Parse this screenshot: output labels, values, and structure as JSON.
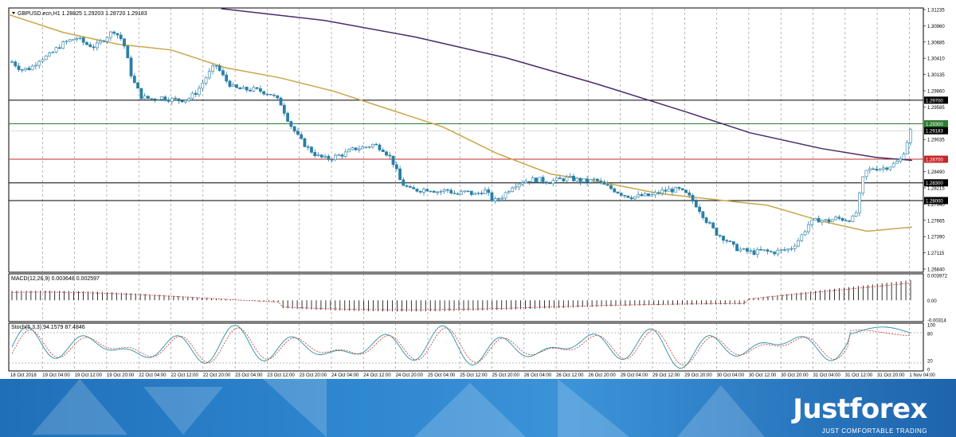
{
  "symbol_header": "GBPUSD.ecn,H1  1.28825 1.29203 1.28720 1.29183",
  "brand": {
    "name": "Justforex",
    "tagline": "JUST COMFORTABLE TRADING"
  },
  "colors": {
    "bull": "#2a7fa6",
    "ma_fast": "#c9a54a",
    "ma_slow": "#4b2a6b",
    "hline_black": "#000000",
    "hline_green": "#2e7d32",
    "hline_red": "#c62828",
    "macd_signal": "#c0392b",
    "stoch_main": "#2a8fa0",
    "stoch_signal": "#c0392b"
  },
  "chart_data": {
    "type": "candlestick",
    "price_axis": {
      "ylim": [
        1.2684,
        1.31235
      ],
      "ticks": [
        "1.31235",
        "1.30960",
        "1.30685",
        "1.30410",
        "1.30135",
        "1.29860",
        "1.29585",
        "1.29035",
        "1.28490",
        "1.28215",
        "1.27940",
        "1.27665",
        "1.27390",
        "1.27115",
        "1.26840"
      ]
    },
    "horizontal_levels": [
      {
        "value": 1.297,
        "label": "1.29700",
        "color": "black"
      },
      {
        "value": 1.293,
        "label": "1.29300",
        "color": "green"
      },
      {
        "value": 1.287,
        "label": "1.28700",
        "color": "red"
      },
      {
        "value": 1.283,
        "label": "1.28300",
        "color": "black"
      },
      {
        "value": 1.28,
        "label": "1.28000",
        "color": "black"
      }
    ],
    "current_price": {
      "value": 1.29183,
      "label": "1.29183"
    },
    "time_labels": [
      "18 Oct 2018",
      "19 Oct 04:00",
      "19 Oct 12:00",
      "19 Oct 20:00",
      "22 Oct 04:00",
      "22 Oct 12:00",
      "22 Oct 20:00",
      "23 Oct 04:00",
      "23 Oct 12:00",
      "23 Oct 20:00",
      "24 Oct 04:00",
      "24 Oct 12:00",
      "24 Oct 20:00",
      "25 Oct 04:00",
      "25 Oct 12:00",
      "25 Oct 20:00",
      "26 Oct 04:00",
      "26 Oct 12:00",
      "26 Oct 20:00",
      "29 Oct 04:00",
      "29 Oct 12:00",
      "29 Oct 20:00",
      "30 Oct 04:00",
      "30 Oct 12:00",
      "30 Oct 20:00",
      "31 Oct 04:00",
      "31 Oct 12:00",
      "31 Oct 20:00",
      "1 Nov 04:00"
    ],
    "close_path": [
      1.3035,
      1.3022,
      1.3024,
      1.304,
      1.3045,
      1.306,
      1.307,
      1.3075,
      1.3065,
      1.306,
      1.3075,
      1.3088,
      1.307,
      1.3005,
      1.2975,
      1.2972,
      1.2975,
      1.2972,
      1.297,
      1.2972,
      1.2985,
      1.301,
      1.303,
      1.3005,
      1.299,
      1.2988,
      1.2988,
      1.2985,
      1.298,
      1.2965,
      1.293,
      1.2905,
      1.2888,
      1.2875,
      1.287,
      1.2875,
      1.288,
      1.2888,
      1.289,
      1.2895,
      1.2888,
      1.287,
      1.283,
      1.2818,
      1.2818,
      1.282,
      1.2815,
      1.2818,
      1.281,
      1.2815,
      1.281,
      1.2818,
      1.2798,
      1.2808,
      1.2825,
      1.2832,
      1.2835,
      1.2835,
      1.2832,
      1.2835,
      1.2838,
      1.2835,
      1.2832,
      1.2835,
      1.2825,
      1.2818,
      1.281,
      1.2806,
      1.2808,
      1.2808,
      1.2815,
      1.2818,
      1.2818,
      1.2808,
      1.279,
      1.2765,
      1.2745,
      1.2735,
      1.272,
      1.2715,
      1.2712,
      1.2715,
      1.2712,
      1.2715,
      1.2718,
      1.2735,
      1.276,
      1.2768,
      1.2765,
      1.277,
      1.2768,
      1.277,
      1.2848,
      1.2855,
      1.2855,
      1.286,
      1.287,
      1.2918
    ],
    "ma_fast_label": "MA (yellow)",
    "ma_fast": [
      {
        "t": 0.0,
        "v": 1.3115
      },
      {
        "t": 0.06,
        "v": 1.3085
      },
      {
        "t": 0.12,
        "v": 1.3065
      },
      {
        "t": 0.18,
        "v": 1.3055
      },
      {
        "t": 0.24,
        "v": 1.3025
      },
      {
        "t": 0.3,
        "v": 1.3008
      },
      {
        "t": 0.36,
        "v": 1.2985
      },
      {
        "t": 0.42,
        "v": 1.2955
      },
      {
        "t": 0.48,
        "v": 1.2925
      },
      {
        "t": 0.54,
        "v": 1.288
      },
      {
        "t": 0.6,
        "v": 1.2845
      },
      {
        "t": 0.66,
        "v": 1.283
      },
      {
        "t": 0.72,
        "v": 1.2812
      },
      {
        "t": 0.78,
        "v": 1.2802
      },
      {
        "t": 0.84,
        "v": 1.2792
      },
      {
        "t": 0.9,
        "v": 1.2765
      },
      {
        "t": 0.95,
        "v": 1.2748
      },
      {
        "t": 1.0,
        "v": 1.2755
      }
    ],
    "ma_slow": [
      {
        "t": 0.235,
        "v": 1.3125
      },
      {
        "t": 0.35,
        "v": 1.3105
      },
      {
        "t": 0.45,
        "v": 1.3077
      },
      {
        "t": 0.55,
        "v": 1.3042
      },
      {
        "t": 0.65,
        "v": 1.2998
      },
      {
        "t": 0.75,
        "v": 1.295
      },
      {
        "t": 0.82,
        "v": 1.2915
      },
      {
        "t": 0.9,
        "v": 1.2888
      },
      {
        "t": 0.96,
        "v": 1.2873
      },
      {
        "t": 1.0,
        "v": 1.2868
      }
    ],
    "macd": {
      "label": "MACD(12,26,9) 0.003648 0.002597",
      "ticks": [
        "0.003972",
        "0.00",
        "-0.00314"
      ],
      "ylim": [
        -0.00314,
        0.003972
      ]
    },
    "stoch": {
      "label": "Stoch(5,3,3) 94.1579 87.4846",
      "ticks": [
        "100",
        "80",
        "20",
        "0"
      ],
      "levels": [
        80,
        20
      ]
    }
  }
}
